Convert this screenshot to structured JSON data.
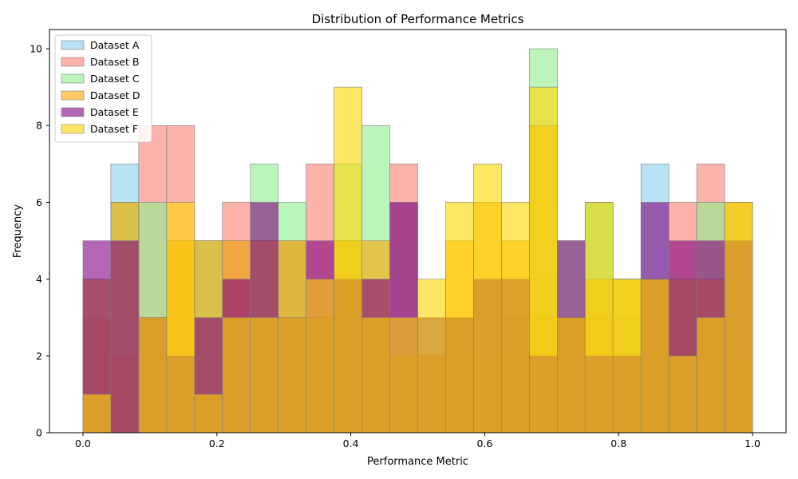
{
  "chart_data": {
    "type": "bar",
    "title": "Distribution of Performance Metrics",
    "xlabel": "Performance Metric",
    "ylabel": "Frequency",
    "xlim": [
      -0.05,
      1.05
    ],
    "ylim": [
      0,
      10.5
    ],
    "x_ticks": [
      0.0,
      0.2,
      0.4,
      0.6,
      0.8,
      1.0
    ],
    "x_tick_labels": [
      "0.0",
      "0.2",
      "0.4",
      "0.6",
      "0.8",
      "1.0"
    ],
    "y_ticks": [
      0,
      2,
      4,
      6,
      8,
      10
    ],
    "y_tick_labels": [
      "0",
      "2",
      "4",
      "6",
      "8",
      "10"
    ],
    "bins": 24,
    "bin_range": [
      0,
      1
    ],
    "legend_position": "top-left",
    "grid": false,
    "series": [
      {
        "name": "Dataset A",
        "color": "#87ceeb",
        "opacity": 0.6,
        "values": [
          3,
          7,
          3,
          5,
          5,
          5,
          5,
          5,
          3,
          5,
          3,
          6,
          2,
          2,
          4,
          2,
          4,
          3,
          6,
          3,
          7,
          4,
          2,
          6
        ]
      },
      {
        "name": "Dataset B",
        "color": "#fa8072",
        "opacity": 0.6,
        "values": [
          3,
          2,
          8,
          8,
          1,
          6,
          3,
          5,
          7,
          4,
          3,
          7,
          2,
          3,
          2,
          3,
          3,
          3,
          3,
          2,
          4,
          6,
          7,
          2
        ]
      },
      {
        "name": "Dataset C",
        "color": "#90ee90",
        "opacity": 0.6,
        "values": [
          4,
          6,
          6,
          2,
          5,
          3,
          7,
          6,
          3,
          7,
          8,
          2,
          3,
          3,
          4,
          4,
          10,
          5,
          6,
          4,
          4,
          4,
          6,
          5
        ]
      },
      {
        "name": "Dataset D",
        "color": "#ffa500",
        "opacity": 0.6,
        "values": [
          4,
          6,
          3,
          5,
          5,
          5,
          5,
          5,
          3,
          5,
          5,
          2,
          2,
          5,
          6,
          5,
          8,
          3,
          4,
          4,
          4,
          4,
          4,
          6
        ]
      },
      {
        "name": "Dataset E",
        "color": "#800080",
        "opacity": 0.6,
        "values": [
          5,
          5,
          3,
          2,
          3,
          4,
          6,
          3,
          5,
          4,
          4,
          6,
          3,
          3,
          4,
          4,
          2,
          5,
          2,
          2,
          6,
          5,
          5,
          5
        ]
      },
      {
        "name": "Dataset F",
        "color": "#ffd700",
        "opacity": 0.6,
        "values": [
          1,
          0,
          3,
          6,
          1,
          3,
          3,
          3,
          4,
          9,
          3,
          3,
          4,
          6,
          7,
          6,
          9,
          3,
          6,
          4,
          4,
          2,
          3,
          6
        ]
      }
    ]
  }
}
